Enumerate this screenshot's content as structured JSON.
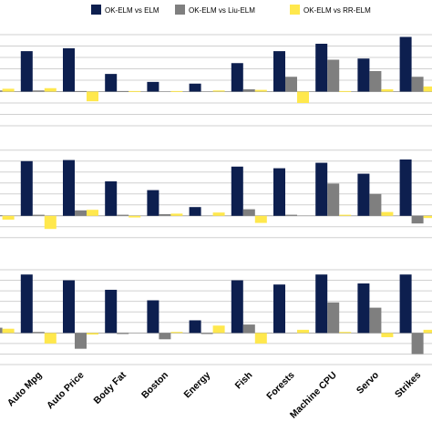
{
  "chart_data": {
    "type": "bar",
    "layout": "three stacked panels sharing x categories; first category cropped at left edge",
    "grid": true,
    "legend": {
      "placement": "top",
      "entries": [
        "OK-ELM vs ELM",
        "OK-ELM vs Liu-ELM",
        "OK-ELM vs RR-ELM"
      ]
    },
    "colors": {
      "OK-ELM vs ELM": "#0d1f4f",
      "OK-ELM vs Liu-ELM": "#7f7f7f",
      "OK-ELM vs RR-ELM": "#ffe84d"
    },
    "categories": [
      "",
      "Auto Mpg",
      "Auto Price",
      "Body Fat",
      "Boston",
      "Energy",
      "Fish",
      "Forests",
      "Machine CPU",
      "Servo",
      "Strikes"
    ],
    "panels": [
      {
        "ylim": [
          -3,
          5
        ],
        "series": [
          {
            "name": "OK-ELM vs ELM",
            "values": [
              0.0,
              3.55,
              3.8,
              1.55,
              0.85,
              0.7,
              2.5,
              3.55,
              4.2,
              2.9,
              4.8
            ]
          },
          {
            "name": "OK-ELM vs Liu-ELM",
            "values": [
              0.1,
              0.1,
              0.05,
              0.05,
              0.0,
              0.0,
              0.2,
              1.3,
              2.8,
              1.8,
              1.3
            ]
          },
          {
            "name": "OK-ELM vs RR-ELM",
            "values": [
              0.25,
              0.3,
              -0.85,
              0.05,
              0.05,
              0.1,
              0.15,
              -1.0,
              0.05,
              0.2,
              0.45
            ]
          }
        ]
      },
      {
        "ylim": [
          -2.6,
          6.4
        ],
        "series": [
          {
            "name": "OK-ELM vs ELM",
            "values": [
              0.0,
              5.0,
              5.1,
              3.15,
              2.35,
              0.8,
              4.5,
              4.35,
              4.85,
              3.85,
              5.15
            ]
          },
          {
            "name": "OK-ELM vs Liu-ELM",
            "values": [
              0.05,
              0.1,
              0.5,
              0.1,
              0.15,
              0.0,
              0.6,
              0.1,
              2.95,
              2.0,
              -0.7
            ]
          },
          {
            "name": "OK-ELM vs RR-ELM",
            "values": [
              -0.35,
              -1.2,
              0.55,
              -0.15,
              0.2,
              0.3,
              -0.65,
              0.0,
              0.1,
              0.35,
              -0.2
            ]
          }
        ]
      },
      {
        "ylim": [
          -3,
          6
        ],
        "series": [
          {
            "name": "OK-ELM vs ELM",
            "values": [
              0.0,
              5.55,
              5.0,
              4.1,
              3.1,
              1.2,
              5.0,
              4.6,
              5.55,
              4.7,
              5.55
            ]
          },
          {
            "name": "OK-ELM vs Liu-ELM",
            "values": [
              0.5,
              0.1,
              -1.5,
              -0.1,
              -0.6,
              -0.1,
              0.8,
              0.0,
              2.9,
              2.4,
              -2.0
            ]
          },
          {
            "name": "OK-ELM vs RR-ELM",
            "values": [
              0.4,
              -1.0,
              -0.15,
              0.0,
              0.1,
              0.7,
              -1.0,
              0.3,
              0.1,
              -0.4,
              0.3
            ]
          }
        ]
      }
    ]
  }
}
